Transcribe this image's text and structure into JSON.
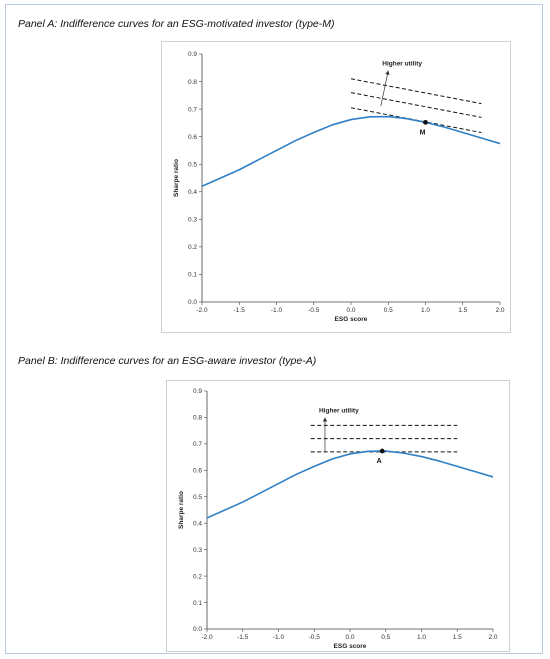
{
  "panels": [
    {
      "title": "Panel A: Indifference curves for an ESG-motivated investor (type-M)"
    },
    {
      "title": "Panel B: Indifference curves for an ESG-aware investor (type-A)"
    }
  ],
  "chart_data": [
    {
      "type": "line",
      "xlabel": "ESG score",
      "ylabel": "Sharpe ratio",
      "xlim": [
        -2.0,
        2.0
      ],
      "ylim": [
        0.0,
        0.9
      ],
      "xticks": [
        "-2.0",
        "-1.5",
        "-1.0",
        "-0.5",
        "0.0",
        "0.5",
        "1.0",
        "1.5",
        "2.0"
      ],
      "yticks": [
        "0.0",
        "0.1",
        "0.2",
        "0.3",
        "0.4",
        "0.5",
        "0.6",
        "0.7",
        "0.8",
        "0.9"
      ],
      "grid": false,
      "series": [
        {
          "color": "#2f7fc7",
          "x": [
            -2.0,
            -1.75,
            -1.5,
            -1.25,
            -1.0,
            -0.75,
            -0.5,
            -0.25,
            0.0,
            0.25,
            0.5,
            0.75,
            1.0,
            1.25,
            1.5,
            1.75,
            2.0
          ],
          "y": [
            0.42,
            0.45,
            0.48,
            0.515,
            0.55,
            0.585,
            0.615,
            0.643,
            0.662,
            0.672,
            0.673,
            0.665,
            0.652,
            0.635,
            0.615,
            0.595,
            0.575
          ]
        }
      ],
      "indifference_lines": [
        {
          "x": [
            0.0,
            1.75
          ],
          "y": [
            0.705,
            0.615
          ],
          "style": "dashed"
        },
        {
          "x": [
            0.0,
            1.75
          ],
          "y": [
            0.76,
            0.67
          ],
          "style": "dashed"
        },
        {
          "x": [
            0.0,
            1.75
          ],
          "y": [
            0.81,
            0.72
          ],
          "style": "dashed"
        }
      ],
      "point": {
        "label": "M",
        "x": 1.0,
        "y": 0.652
      },
      "annotation": {
        "text": "Higher utility",
        "arrow_from": [
          0.4,
          0.71
        ],
        "arrow_to": [
          0.5,
          0.84
        ]
      }
    },
    {
      "type": "line",
      "xlabel": "ESG score",
      "ylabel": "Sharpe ratio",
      "xlim": [
        -2.0,
        2.0
      ],
      "ylim": [
        0.0,
        0.9
      ],
      "xticks": [
        "-2.0",
        "-1.5",
        "-1.0",
        "-0.5",
        "0.0",
        "0.5",
        "1.0",
        "1.5",
        "2.0"
      ],
      "yticks": [
        "0.0",
        "0.1",
        "0.2",
        "0.3",
        "0.4",
        "0.5",
        "0.6",
        "0.7",
        "0.8",
        "0.9"
      ],
      "grid": false,
      "series": [
        {
          "color": "#2f7fc7",
          "x": [
            -2.0,
            -1.75,
            -1.5,
            -1.25,
            -1.0,
            -0.75,
            -0.5,
            -0.25,
            0.0,
            0.25,
            0.5,
            0.75,
            1.0,
            1.25,
            1.5,
            1.75,
            2.0
          ],
          "y": [
            0.42,
            0.45,
            0.48,
            0.515,
            0.55,
            0.585,
            0.615,
            0.643,
            0.662,
            0.672,
            0.673,
            0.665,
            0.652,
            0.635,
            0.615,
            0.595,
            0.575
          ]
        }
      ],
      "indifference_lines": [
        {
          "x": [
            -0.55,
            1.5
          ],
          "y": [
            0.67,
            0.67
          ],
          "style": "dashed"
        },
        {
          "x": [
            -0.55,
            1.5
          ],
          "y": [
            0.72,
            0.72
          ],
          "style": "dashed"
        },
        {
          "x": [
            -0.55,
            1.5
          ],
          "y": [
            0.77,
            0.77
          ],
          "style": "dashed"
        }
      ],
      "point": {
        "label": "A",
        "x": 0.45,
        "y": 0.673
      },
      "annotation": {
        "text": "Higher utility",
        "arrow_from": [
          -0.35,
          0.67
        ],
        "arrow_to": [
          -0.35,
          0.8
        ]
      }
    }
  ]
}
